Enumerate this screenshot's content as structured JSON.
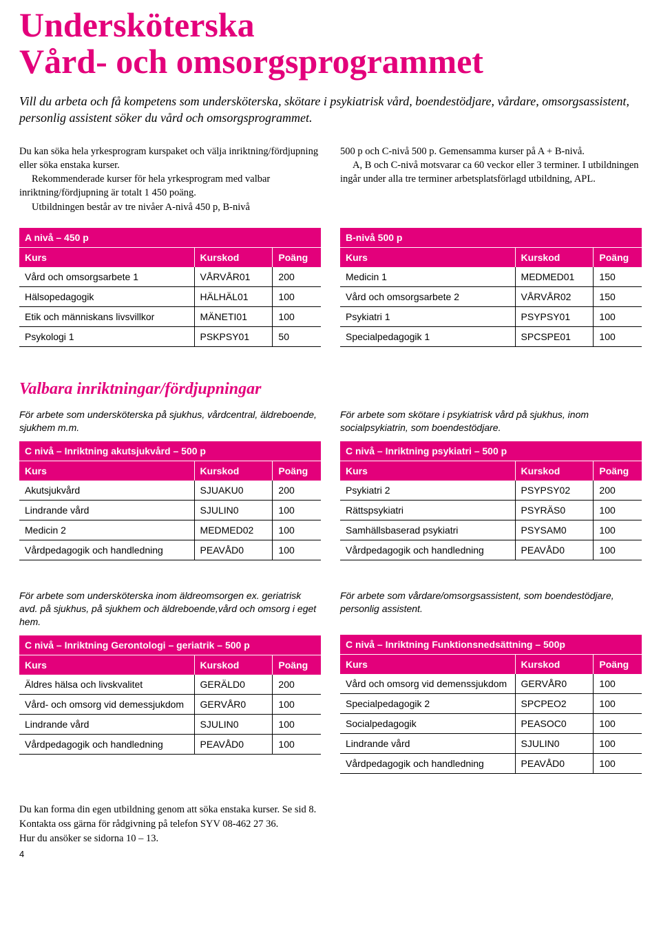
{
  "colors": {
    "magenta": "#e3007b",
    "text": "#000000",
    "white": "#ffffff"
  },
  "title_line1": "Undersköterska",
  "title_line2": "Vård- och omsorgsprogrammet",
  "intro": "Vill du arbeta och få kompetens som undersköterska, skötare i psykiatrisk vård, boendestödjare, vårdare, omsorgsassistent, personlig assistent söker du vård och omsorgsprogrammet.",
  "body_left_p1": "Du kan söka hela yrkesprogram kurspaket och välja inriktning/fördjupning eller söka enstaka kurser.",
  "body_left_p2": "Rekommenderade kurser för hela yrkesprogram med valbar inriktning/fördjupning är totalt 1 450 poäng.",
  "body_left_p3": "Utbildningen består av tre nivåer A-nivå 450 p, B-nivå",
  "body_right_p1": "500 p och C-nivå 500 p. Gemensamma kurser på A + B-nivå.",
  "body_right_p2": "A, B och C-nivå motsvarar ca 60 veckor eller 3 terminer. I utbildningen ingår under alla tre terminer arbetsplatsförlagd utbildning, APL.",
  "headers": {
    "kurs": "Kurs",
    "kurskod": "Kurskod",
    "poang": "Poäng"
  },
  "table_a": {
    "title": "A nivå – 450 p",
    "rows": [
      {
        "kurs": "Vård och omsorgsarbete 1",
        "kod": "VÅRVÅR01",
        "p": "200"
      },
      {
        "kurs": "Hälsopedagogik",
        "kod": "HÄLHÄL01",
        "p": "100"
      },
      {
        "kurs": "Etik och människans livsvillkor",
        "kod": "MÄNETI01",
        "p": "100"
      },
      {
        "kurs": "Psykologi 1",
        "kod": "PSKPSY01",
        "p": "50"
      }
    ]
  },
  "table_b": {
    "title": "B-nivå 500 p",
    "rows": [
      {
        "kurs": "Medicin 1",
        "kod": "MEDMED01",
        "p": "150"
      },
      {
        "kurs": "Vård och omsorgsarbete 2",
        "kod": "VÅRVÅR02",
        "p": "150"
      },
      {
        "kurs": "Psykiatri 1",
        "kod": "PSYPSY01",
        "p": "100"
      },
      {
        "kurs": "Specialpedagogik 1",
        "kod": "SPCSPE01",
        "p": "100"
      }
    ]
  },
  "valbara_heading": "Valbara inriktningar/fördjupningar",
  "desc_akut": "För arbete som undersköterska på sjukhus, vårdcentral, äldreboende, sjukhem m.m.",
  "table_akut": {
    "title": "C nivå – Inriktning akutsjukvård – 500 p",
    "rows": [
      {
        "kurs": "Akutsjukvård",
        "kod": "SJUAKU0",
        "p": "200"
      },
      {
        "kurs": "Lindrande vård",
        "kod": "SJULIN0",
        "p": "100"
      },
      {
        "kurs": "Medicin 2",
        "kod": "MEDMED02",
        "p": "100"
      },
      {
        "kurs": "Vårdpedagogik och handledning",
        "kod": "PEAVÅD0",
        "p": "100"
      }
    ]
  },
  "desc_psyk": "För arbete som skötare i psykiatrisk vård på sjukhus, inom socialpsykiatrin, som boendestödjare.",
  "table_psyk": {
    "title": "C nivå – Inriktning psykiatri – 500 p",
    "rows": [
      {
        "kurs": "Psykiatri 2",
        "kod": "PSYPSY02",
        "p": "200"
      },
      {
        "kurs": "Rättspsykiatri",
        "kod": "PSYRÄS0",
        "p": "100"
      },
      {
        "kurs": "Samhällsbaserad psykiatri",
        "kod": "PSYSAM0",
        "p": "100"
      },
      {
        "kurs": "Vårdpedagogik och handledning",
        "kod": "PEAVÅD0",
        "p": "100"
      }
    ]
  },
  "desc_ger": "För arbete som undersköterska inom äldreomsorgen ex. geriatrisk avd. på sjukhus, på sjukhem och äldreboende,vård och omsorg i eget hem.",
  "table_ger": {
    "title": "C nivå – Inriktning Gerontologi – geriatrik – 500 p",
    "rows": [
      {
        "kurs": "Äldres hälsa och livskvalitet",
        "kod": "GERÄLD0",
        "p": "200"
      },
      {
        "kurs": "Vård- och omsorg vid demessjukdom",
        "kod": "GERVÅR0",
        "p": "100"
      },
      {
        "kurs": "Lindrande vård",
        "kod": "SJULIN0",
        "p": "100"
      },
      {
        "kurs": "Vårdpedagogik och handledning",
        "kod": "PEAVÅD0",
        "p": "100"
      }
    ]
  },
  "desc_funk": "För arbete som vårdare/omsorgsassistent, som boendestödjare, personlig assistent.",
  "table_funk": {
    "title": "C nivå – Inriktning Funktionsnedsättning – 500p",
    "rows": [
      {
        "kurs": "Vård och omsorg vid demenssjukdom",
        "kod": "GERVÅR0",
        "p": "100"
      },
      {
        "kurs": "Specialpedagogik 2",
        "kod": "SPCPEO2",
        "p": "100"
      },
      {
        "kurs": "Socialpedagogik",
        "kod": "PEASOC0",
        "p": "100"
      },
      {
        "kurs": "Lindrande vård",
        "kod": "SJULIN0",
        "p": "100"
      },
      {
        "kurs": "Vårdpedagogik och handledning",
        "kod": "PEAVÅD0",
        "p": "100"
      }
    ]
  },
  "footer_l1": "Du kan forma din egen utbildning genom att söka enstaka kurser. Se sid 8.",
  "footer_l2": "Kontakta oss gärna för rådgivning på telefon SYV 08-462 27 36.",
  "footer_l3": "Hur du ansöker se sidorna 10 – 13.",
  "page_number": "4"
}
